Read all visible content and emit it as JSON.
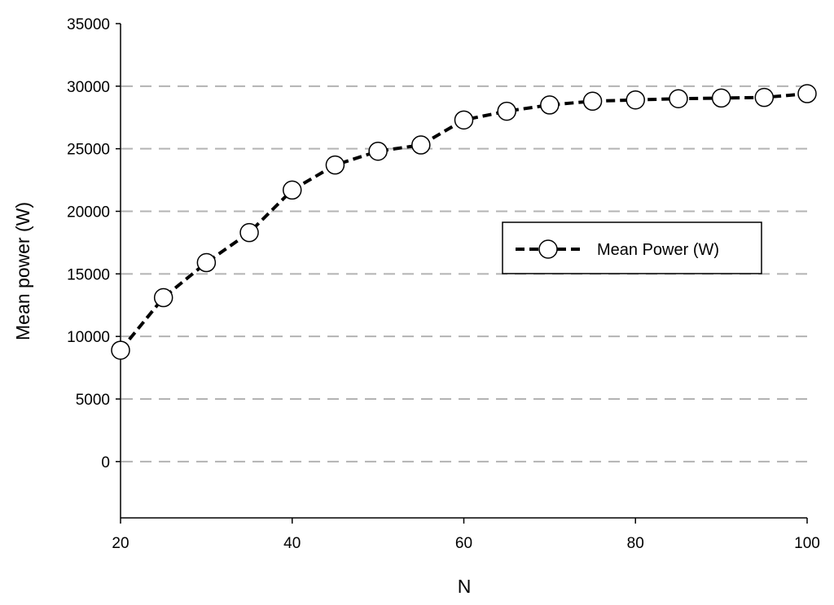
{
  "chart_data": {
    "type": "line",
    "title": "",
    "xlabel": "N",
    "ylabel": "Mean power (W)",
    "xlim": [
      20,
      100
    ],
    "ylim": [
      -4500,
      35000
    ],
    "x_ticks": [
      20,
      40,
      60,
      80,
      100
    ],
    "y_ticks": [
      0,
      5000,
      10000,
      15000,
      20000,
      25000,
      30000,
      35000
    ],
    "grid": "horizontal dashed",
    "legend_position": "right, middle",
    "series": [
      {
        "name": "Mean Power (W)",
        "line_style": "dashed",
        "marker": "open circle",
        "color": "#000000",
        "x": [
          20,
          25,
          30,
          35,
          40,
          45,
          50,
          55,
          60,
          65,
          70,
          75,
          80,
          85,
          90,
          95,
          100
        ],
        "y": [
          8900,
          13100,
          15900,
          18300,
          21700,
          23700,
          24800,
          25300,
          27300,
          28000,
          28500,
          28800,
          28900,
          29000,
          29050,
          29100,
          29400
        ]
      }
    ]
  }
}
